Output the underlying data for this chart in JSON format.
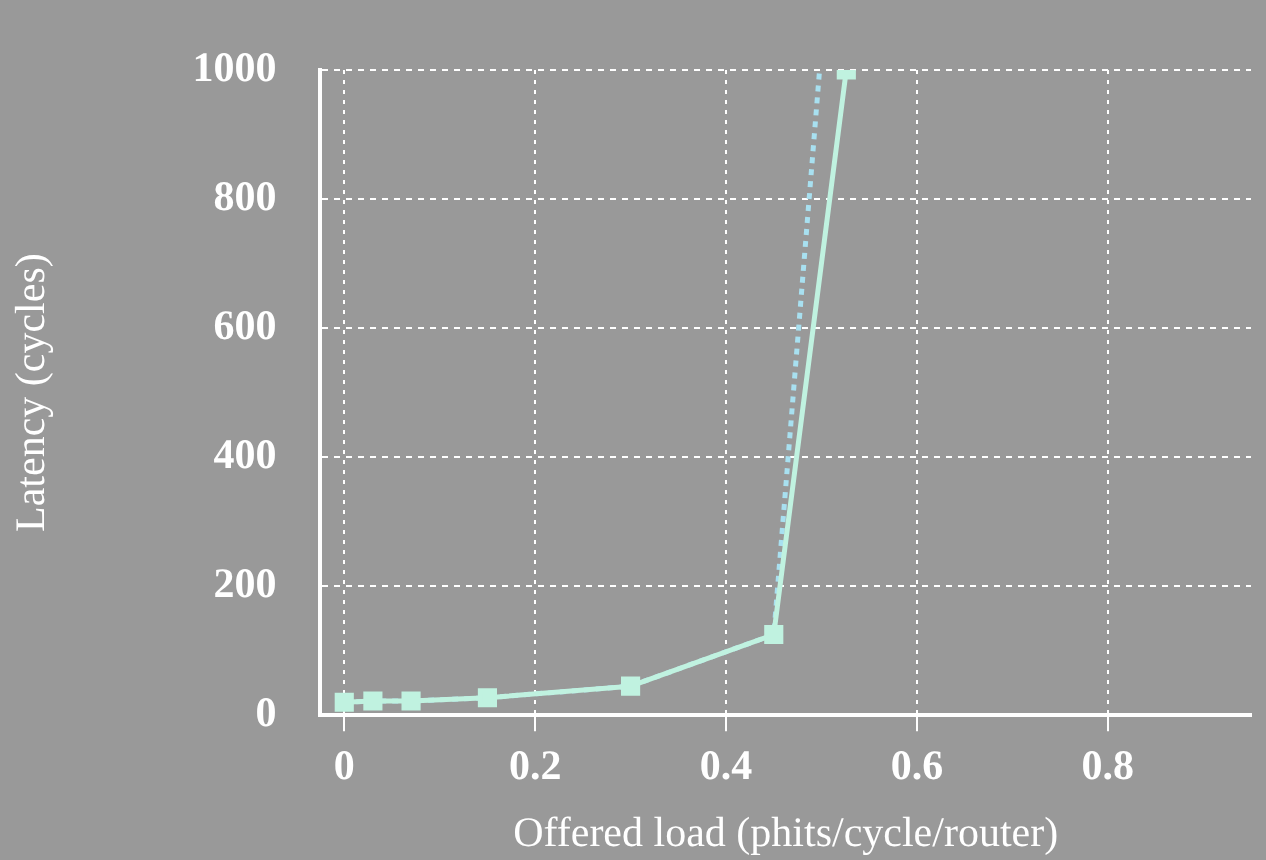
{
  "chart_data": {
    "type": "line",
    "xlabel": "Offered load (phits/cycle/router)",
    "ylabel": "Latency (cycles)",
    "xlim": [
      -0.025,
      0.95
    ],
    "xticks": [
      0,
      0.2,
      0.4,
      0.6,
      0.8
    ],
    "ylim": [
      0,
      1000
    ],
    "yticks": [
      0,
      200,
      400,
      600,
      800,
      1000
    ],
    "grid": true,
    "legend": false,
    "series": [
      {
        "color": "#c0f2e0",
        "x": [
          0,
          0.03,
          0.07,
          0.15,
          0.3,
          0.45,
          0.526
        ],
        "values": [
          20,
          22,
          22,
          27,
          45,
          125,
          1000
        ],
        "marker": "square",
        "line_style": "solid"
      },
      {
        "color": "#a8e0f0",
        "x": [
          0,
          0.03,
          0.07,
          0.15,
          0.3,
          0.45,
          0.498
        ],
        "values": [
          20,
          22,
          22,
          27,
          45,
          125,
          1000
        ],
        "marker": "none",
        "line_style": "dotted"
      }
    ]
  }
}
